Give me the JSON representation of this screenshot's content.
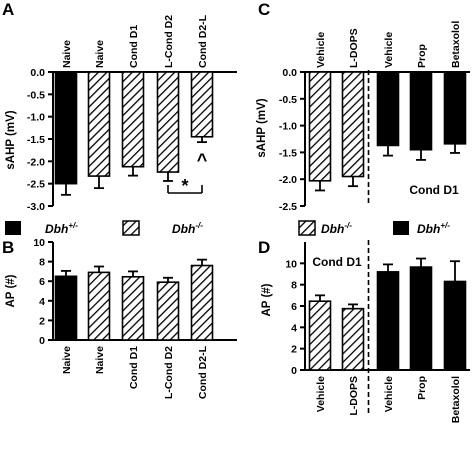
{
  "colors": {
    "solid": "#000000",
    "background": "#ffffff"
  },
  "legend_left": {
    "solid_label": "Dbh",
    "solid_sup": "+/-",
    "hatched_label": "Dbh",
    "hatched_sup": "-/-"
  },
  "legend_right": {
    "hatched_label": "Dbh",
    "hatched_sup": "-/-",
    "solid_label": "Dbh",
    "solid_sup": "+/-"
  },
  "chart_data": [
    {
      "id": "A",
      "letter": "A",
      "type": "bar",
      "ylabel": "sAHP (mV)",
      "ylim": [
        -3.0,
        0.0
      ],
      "yticks": [
        0.0,
        -0.5,
        -1.0,
        -1.5,
        -2.0,
        -2.5,
        -3.0
      ],
      "ytick_labels": [
        "0.0",
        "-0.5",
        "-1.0",
        "-1.5",
        "-2.0",
        "-2.5",
        "-3.0"
      ],
      "category_position": "top",
      "categories": [
        "Naive",
        "Naive",
        "Cond D1",
        "L-Cond D2",
        "Cond D2-L"
      ],
      "fills": [
        "solid",
        "hatched",
        "hatched",
        "hatched",
        "hatched"
      ],
      "values": [
        -2.5,
        -2.33,
        -2.12,
        -2.24,
        -1.45
      ],
      "errors": [
        0.25,
        0.27,
        0.2,
        0.2,
        0.12
      ],
      "annotations": [
        {
          "text": "^",
          "category": 4
        },
        {
          "text": "*",
          "bracket": [
            3,
            4
          ]
        }
      ]
    },
    {
      "id": "B",
      "letter": "B",
      "type": "bar",
      "ylabel": "AP (#)",
      "ylim": [
        0,
        10
      ],
      "yticks": [
        0,
        2,
        4,
        6,
        8,
        10
      ],
      "ytick_labels": [
        "0",
        "2",
        "4",
        "6",
        "8",
        "10"
      ],
      "category_position": "bottom",
      "categories": [
        "Naive",
        "Naive",
        "Cond D1",
        "L-Cond D2",
        "Cond D2-L"
      ],
      "fills": [
        "solid",
        "hatched",
        "hatched",
        "hatched",
        "hatched"
      ],
      "values": [
        6.5,
        6.9,
        6.45,
        5.9,
        7.6
      ],
      "errors": [
        0.55,
        0.6,
        0.55,
        0.45,
        0.6
      ]
    },
    {
      "id": "C",
      "letter": "C",
      "type": "bar",
      "ylabel": "sAHP (mV)",
      "ylim": [
        -2.5,
        0.0
      ],
      "yticks": [
        0.0,
        -0.5,
        -1.0,
        -1.5,
        -2.0,
        -2.5
      ],
      "ytick_labels": [
        "0.0",
        "-0.5",
        "-1.0",
        "-1.5",
        "-2.0",
        "-2.5"
      ],
      "category_position": "top",
      "categories": [
        "Vehicle",
        "L-DOPS",
        "Vehicle",
        "Prop",
        "Betaxolol"
      ],
      "fills": [
        "hatched",
        "hatched",
        "solid",
        "solid",
        "solid"
      ],
      "values": [
        -2.03,
        -1.95,
        -1.37,
        -1.45,
        -1.34
      ],
      "errors": [
        0.18,
        0.18,
        0.19,
        0.19,
        0.17
      ],
      "divider_after": 1,
      "note": "Cond D1"
    },
    {
      "id": "D",
      "letter": "D",
      "type": "bar",
      "ylabel": "AP (#)",
      "ylim": [
        0,
        12
      ],
      "yticks": [
        0,
        2,
        4,
        6,
        8,
        10
      ],
      "ytick_labels": [
        "0",
        "2",
        "4",
        "6",
        "8",
        "10"
      ],
      "category_position": "bottom",
      "categories": [
        "Vehicle",
        "L-DOPS",
        "Vehicle",
        "Prop",
        "Betaxolol"
      ],
      "fills": [
        "hatched",
        "hatched",
        "solid",
        "solid",
        "solid"
      ],
      "values": [
        6.45,
        5.75,
        9.2,
        9.65,
        8.3
      ],
      "errors": [
        0.55,
        0.4,
        0.7,
        0.8,
        1.9
      ],
      "divider_after": 1,
      "note": "Cond D1"
    }
  ]
}
